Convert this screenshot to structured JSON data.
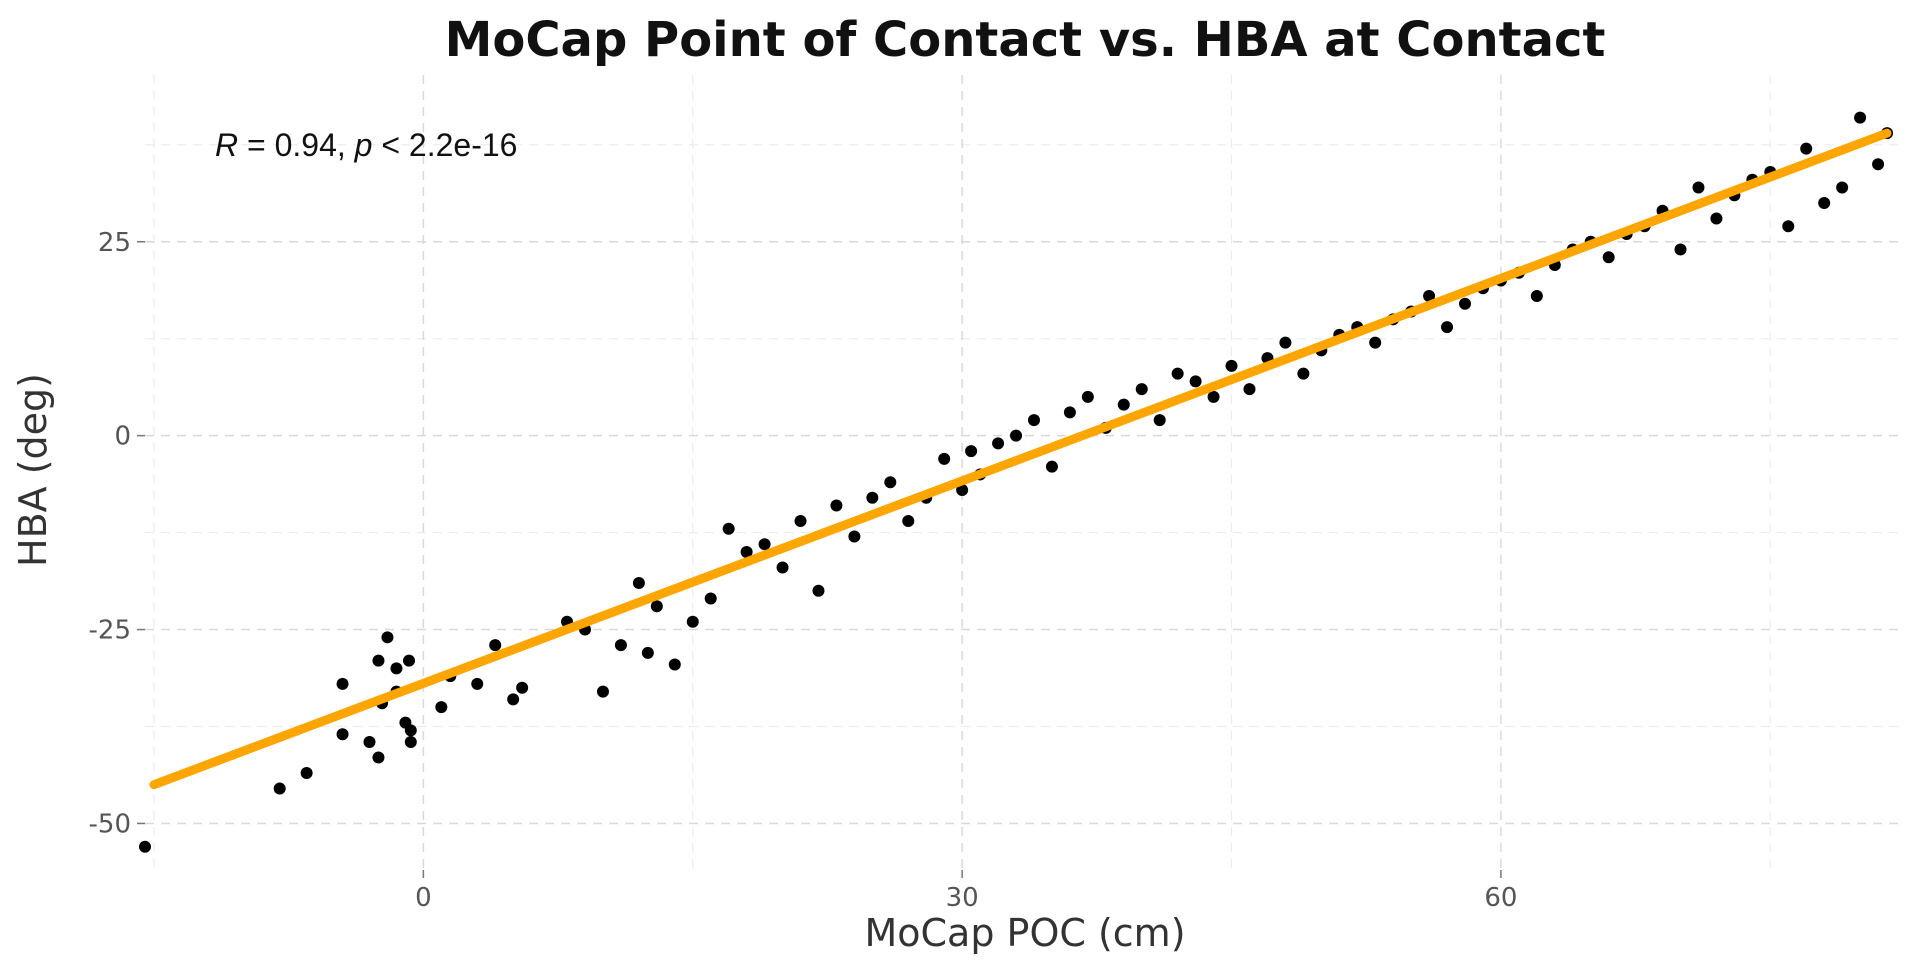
{
  "chart_data": {
    "type": "scatter",
    "title": "MoCap Point of Contact vs. HBA at Contact",
    "xlabel": "MoCap POC (cm)",
    "ylabel": "HBA (deg)",
    "xlim": [
      -15.5,
      82.5
    ],
    "ylim": [
      -56,
      46.5
    ],
    "x_ticks": [
      0,
      30,
      60
    ],
    "x_tick_labels": [
      "0",
      "30",
      "60"
    ],
    "y_ticks": [
      -50,
      -25,
      0,
      25
    ],
    "y_tick_labels": [
      "-50",
      "-25",
      "0",
      "25"
    ],
    "x_minor_ticks": [
      -15,
      15,
      45,
      75
    ],
    "y_minor_ticks": [
      -37.5,
      -12.5,
      12.5,
      37.5
    ],
    "grid": true,
    "annotation": {
      "r_symbol": "R",
      "r_text": " = 0.94,  ",
      "p_symbol": "p",
      "p_text": " < 2.2e-16"
    },
    "point_color": "#000000",
    "fit_color": "#FFA500",
    "series": [
      {
        "kind": "points",
        "x": [
          -15.5,
          -8,
          -6.5,
          -4.5,
          -4.5,
          -3,
          -2.5,
          -2.5,
          -2.3,
          -2,
          -1.5,
          -1.5,
          -1,
          -0.8,
          -0.7,
          -0.7,
          1,
          1.5,
          3,
          4,
          5,
          5.5,
          8,
          9,
          10,
          11,
          12,
          12.5,
          13,
          14,
          15,
          16,
          17,
          18,
          19,
          20,
          21,
          22,
          23,
          24,
          25,
          26,
          27,
          28,
          29,
          30,
          30.5,
          31,
          32,
          33,
          34,
          35,
          36,
          37,
          38,
          39,
          40,
          41,
          42,
          43,
          44,
          45,
          46,
          47,
          48,
          49,
          50,
          51,
          52,
          53,
          54,
          55,
          56,
          57,
          58,
          59,
          60,
          61,
          62,
          63,
          64,
          65,
          66,
          67,
          68,
          69,
          70,
          71,
          72,
          73,
          74,
          75,
          76,
          77,
          78,
          79,
          80,
          81,
          81.5
        ],
        "y": [
          -53,
          -45.5,
          -43.5,
          -38.5,
          -32,
          -39.5,
          -29,
          -41.5,
          -34.5,
          -26,
          -33,
          -30,
          -37,
          -29,
          -39.5,
          -38,
          -35,
          -31,
          -32,
          -27,
          -34,
          -32.5,
          -24,
          -25,
          -33,
          -27,
          -19,
          -28,
          -22,
          -29.5,
          -24,
          -21,
          -12,
          -15,
          -14,
          -17,
          -11,
          -20,
          -9,
          -13,
          -8,
          -6,
          -11,
          -8,
          -3,
          -7,
          -2,
          -5,
          -1,
          0,
          2,
          -4,
          3,
          5,
          1,
          4,
          6,
          2,
          8,
          7,
          5,
          9,
          6,
          10,
          12,
          8,
          11,
          13,
          14,
          12,
          15,
          16,
          18,
          14,
          17,
          19,
          20,
          21,
          18,
          22,
          24,
          25,
          23,
          26,
          27,
          29,
          24,
          32,
          28,
          31,
          33,
          34,
          27,
          37,
          30,
          32,
          41,
          35,
          39
        ]
      },
      {
        "kind": "fit_line",
        "x": [
          -15,
          81.5
        ],
        "y": [
          -45,
          39
        ]
      }
    ]
  }
}
